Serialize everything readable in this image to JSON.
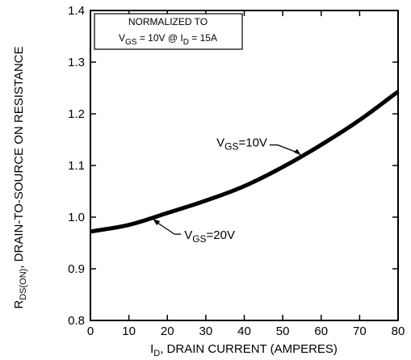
{
  "chart_data": {
    "type": "line",
    "xlabel": "I_D, DRAIN CURRENT (AMPERES)",
    "xlabel_parts": {
      "sym": "I",
      "sub": "D",
      "rest": ", DRAIN CURRENT (AMPERES)"
    },
    "ylabel": "R_DS(ON), DRAIN-TO-SOURCE ON RESISTANCE",
    "ylabel_parts": {
      "sym": "R",
      "sub": "DS(ON)",
      "rest": ", DRAIN-TO-SOURCE ON RESISTANCE"
    },
    "xlim": [
      0,
      80
    ],
    "ylim": [
      0.8,
      1.4
    ],
    "x_ticks": [
      "0",
      "10",
      "20",
      "30",
      "40",
      "50",
      "60",
      "70",
      "80"
    ],
    "y_ticks": [
      "0.8",
      "0.9",
      "1.0",
      "1.1",
      "1.2",
      "1.3",
      "1.4"
    ],
    "grid": false,
    "note": {
      "line1": "NORMALIZED TO",
      "line2": {
        "a": "V",
        "a_sub": "GS",
        "b": " = 10V  @  I",
        "b_sub": "D",
        "c": " = 15A"
      }
    },
    "series": [
      {
        "name": "V_GS=10V",
        "x": [
          0,
          10,
          20,
          30,
          40,
          50,
          60,
          70,
          80
        ],
        "y": [
          0.972,
          0.985,
          1.008,
          1.032,
          1.06,
          1.097,
          1.14,
          1.188,
          1.243
        ]
      },
      {
        "name": "V_GS=20V",
        "x": [
          0,
          10,
          20,
          30,
          40,
          50,
          60,
          70,
          80
        ],
        "y": [
          0.972,
          0.985,
          1.008,
          1.032,
          1.06,
          1.097,
          1.14,
          1.188,
          1.243
        ]
      }
    ],
    "annotations": [
      {
        "label": "V_GS=10V",
        "sym": "V",
        "sub": "GS",
        "rest": "=10V",
        "series": 0,
        "at_x": 55
      },
      {
        "label": "V_GS=20V",
        "sym": "V",
        "sub": "GS",
        "rest": "=20V",
        "series": 1,
        "at_x": 16
      }
    ]
  }
}
